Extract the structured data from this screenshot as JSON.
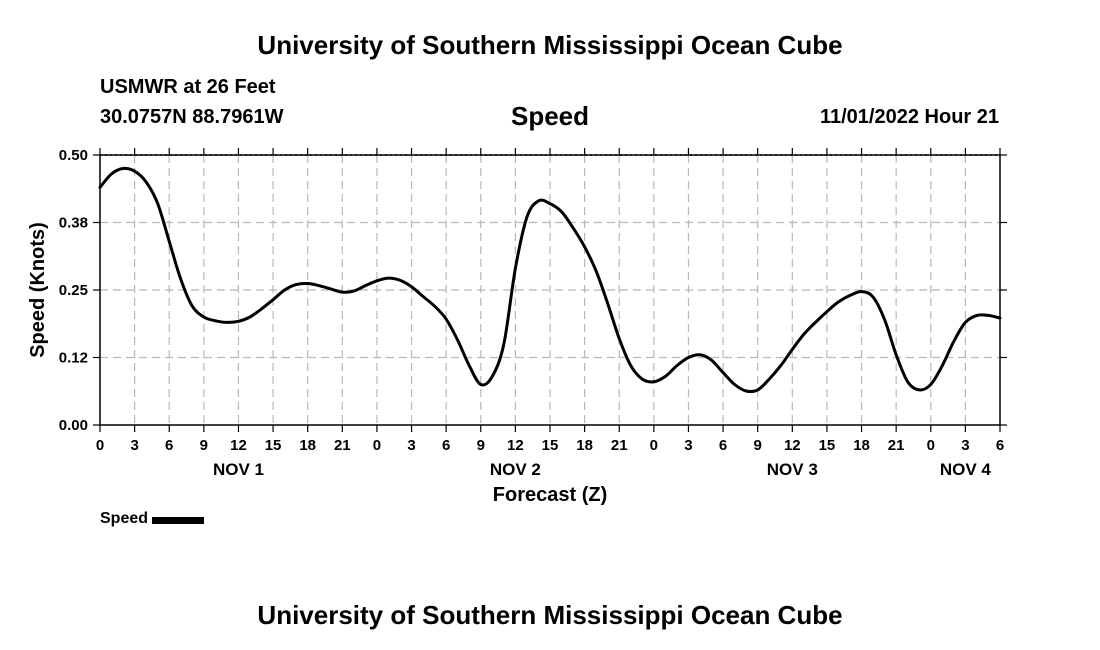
{
  "header": {
    "title": "University of Southern Mississippi Ocean Cube",
    "station": "USMWR at 26 Feet",
    "coords": "30.0757N  88.7961W",
    "variable": "Speed",
    "datetime": "11/01/2022 Hour 21"
  },
  "legend": {
    "label": "Speed"
  },
  "footer": {
    "title": "University of Southern Mississippi Ocean Cube"
  },
  "chart_data": {
    "type": "line",
    "title": "Speed",
    "xlabel": "Forecast (Z)",
    "ylabel": "Speed (Knots)",
    "xlim": [
      0,
      78
    ],
    "ylim": [
      0,
      0.5
    ],
    "grid": true,
    "y_ticks": [
      0,
      0.125,
      0.25,
      0.375,
      0.5
    ],
    "y_tick_labels": [
      "0.00",
      "0.12",
      "0.25",
      "0.38",
      "0.50"
    ],
    "x_ticks": [
      0,
      3,
      6,
      9,
      12,
      15,
      18,
      21,
      24,
      27,
      30,
      33,
      36,
      39,
      42,
      45,
      48,
      51,
      54,
      57,
      60,
      63,
      66,
      69,
      72,
      75,
      78
    ],
    "x_tick_labels": [
      "0",
      "3",
      "6",
      "9",
      "12",
      "15",
      "18",
      "21",
      "0",
      "3",
      "6",
      "9",
      "12",
      "15",
      "18",
      "21",
      "0",
      "3",
      "6",
      "9",
      "12",
      "15",
      "18",
      "21",
      "0",
      "3",
      "6"
    ],
    "day_labels": [
      {
        "x": 12,
        "label": "NOV 1"
      },
      {
        "x": 36,
        "label": "NOV 2"
      },
      {
        "x": 60,
        "label": "NOV 3"
      },
      {
        "x": 75,
        "label": "NOV 4"
      }
    ],
    "series": [
      {
        "name": "Speed",
        "x": [
          0,
          1,
          2,
          3,
          4,
          5,
          6,
          7,
          8,
          9,
          10,
          11,
          12,
          13,
          14,
          15,
          16,
          17,
          18,
          19,
          20,
          21,
          22,
          23,
          24,
          25,
          26,
          27,
          28,
          29,
          30,
          31,
          32,
          33,
          34,
          35,
          36,
          37,
          38,
          39,
          40,
          41,
          42,
          43,
          44,
          45,
          46,
          47,
          48,
          49,
          50,
          51,
          52,
          53,
          54,
          55,
          56,
          57,
          58,
          59,
          60,
          61,
          62,
          63,
          64,
          65,
          66,
          67,
          68,
          69,
          70,
          71,
          72,
          73,
          74,
          75,
          76,
          77,
          78
        ],
        "values": [
          0.44,
          0.465,
          0.475,
          0.47,
          0.45,
          0.41,
          0.34,
          0.27,
          0.22,
          0.2,
          0.193,
          0.19,
          0.192,
          0.2,
          0.215,
          0.232,
          0.25,
          0.26,
          0.262,
          0.258,
          0.252,
          0.246,
          0.248,
          0.258,
          0.267,
          0.272,
          0.268,
          0.256,
          0.238,
          0.22,
          0.196,
          0.157,
          0.11,
          0.075,
          0.09,
          0.15,
          0.29,
          0.385,
          0.415,
          0.41,
          0.395,
          0.365,
          0.33,
          0.285,
          0.225,
          0.16,
          0.11,
          0.085,
          0.08,
          0.09,
          0.11,
          0.125,
          0.13,
          0.12,
          0.097,
          0.075,
          0.063,
          0.065,
          0.085,
          0.11,
          0.14,
          0.168,
          0.19,
          0.21,
          0.228,
          0.24,
          0.247,
          0.237,
          0.195,
          0.13,
          0.08,
          0.065,
          0.075,
          0.11,
          0.155,
          0.19,
          0.203,
          0.203,
          0.198
        ]
      }
    ]
  }
}
